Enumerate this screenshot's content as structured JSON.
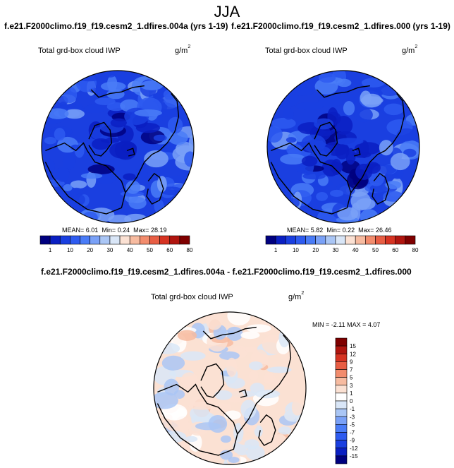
{
  "figure": {
    "season_title": "JJA"
  },
  "panels": [
    {
      "title": "f.e21.F2000climo.f19_f19.cesm2_1.dfires.004a (yrs 1-19)",
      "variable": "Total grd-box cloud IWP",
      "units_base": "g/m",
      "units_exp": "2",
      "stats": {
        "mean_label": "MEAN=",
        "mean": "6.01",
        "min_label": "Min=",
        "min": "0.24",
        "max_label": "Max=",
        "max": "28.19"
      }
    },
    {
      "title": "f.e21.F2000climo.f19_f19.cesm2_1.dfires.000 (yrs 1-19)",
      "variable": "Total grd-box cloud IWP",
      "units_base": "g/m",
      "units_exp": "2",
      "stats": {
        "mean_label": "MEAN=",
        "mean": "5.82",
        "min_label": "Min=",
        "min": "0.22",
        "max_label": "Max=",
        "max": "26.46"
      }
    }
  ],
  "diff_panel": {
    "title": "f.e21.F2000climo.f19_f19.cesm2_1.dfires.004a - f.e21.F2000climo.f19_f19.cesm2_1.dfires.000",
    "variable": "Total grd-box cloud IWP",
    "units_base": "g/m",
    "units_exp": "2",
    "stats_text": "MIN = -2.11  MAX =  4.07"
  },
  "chart_data": [
    {
      "type": "heatmap",
      "projection": "north polar stereographic",
      "title": "Total grd-box cloud IWP",
      "units": "g/m2",
      "colorbar": {
        "orientation": "horizontal",
        "tick_labels": [
          "1",
          "10",
          "20",
          "30",
          "40",
          "50",
          "60",
          "80"
        ],
        "colors": [
          "#00007f",
          "#0a1fc2",
          "#1a3fe0",
          "#2e5bf0",
          "#4a7cf7",
          "#7aa1f7",
          "#aac6f5",
          "#d9e6f7",
          "#fbe1d3",
          "#f7bba0",
          "#f28c6d",
          "#e85e44",
          "#d63322",
          "#b0150f",
          "#7f0000"
        ]
      },
      "stats": {
        "mean": 6.01,
        "min": 0.24,
        "max": 28.19
      }
    },
    {
      "type": "heatmap",
      "projection": "north polar stereographic",
      "title": "Total grd-box cloud IWP",
      "units": "g/m2",
      "colorbar": {
        "orientation": "horizontal",
        "tick_labels": [
          "1",
          "10",
          "20",
          "30",
          "40",
          "50",
          "60",
          "80"
        ],
        "colors": [
          "#00007f",
          "#0a1fc2",
          "#1a3fe0",
          "#2e5bf0",
          "#4a7cf7",
          "#7aa1f7",
          "#aac6f5",
          "#d9e6f7",
          "#fbe1d3",
          "#f7bba0",
          "#f28c6d",
          "#e85e44",
          "#d63322",
          "#b0150f",
          "#7f0000"
        ]
      },
      "stats": {
        "mean": 5.82,
        "min": 0.22,
        "max": 26.46
      }
    },
    {
      "type": "heatmap",
      "projection": "north polar stereographic",
      "title": "Total grd-box cloud IWP",
      "units": "g/m2",
      "colorbar": {
        "orientation": "vertical",
        "tick_labels": [
          "15",
          "12",
          "9",
          "7",
          "5",
          "3",
          "1",
          "0",
          "-1",
          "-3",
          "-5",
          "-7",
          "-9",
          "-12",
          "-15"
        ],
        "colors": [
          "#7f0000",
          "#b0150f",
          "#d63322",
          "#e85e44",
          "#f28c6d",
          "#f7bba0",
          "#fbe1d3",
          "#ffffff",
          "#d9e6f7",
          "#aac6f5",
          "#7aa1f7",
          "#4a7cf7",
          "#2e5bf0",
          "#1a3fe0",
          "#0a1fc2",
          "#00007f"
        ]
      },
      "stats": {
        "min": -2.11,
        "max": 4.07
      }
    }
  ]
}
